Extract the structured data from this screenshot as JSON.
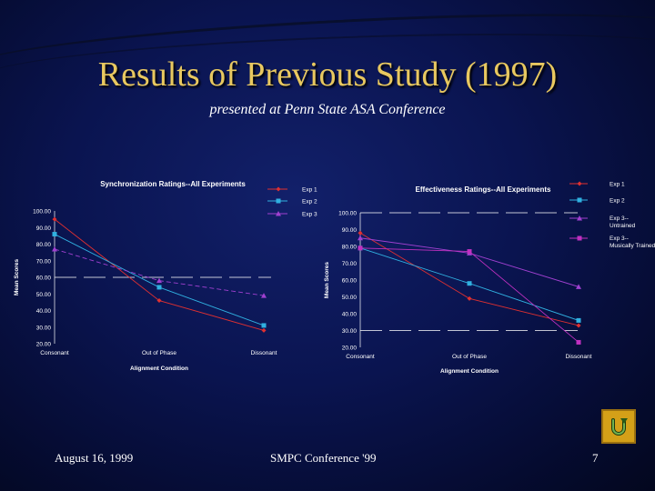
{
  "slide": {
    "title": "Results of Previous Study (1997)",
    "subtitle": "presented at Penn State ASA Conference",
    "footer_left": "August 16, 1999",
    "footer_center": "SMPC Conference '99",
    "page_number": "7",
    "return_icon": "return-arrow-icon"
  },
  "chart_data": [
    {
      "type": "line",
      "title": "Synchronization Ratings--All Experiments",
      "xlabel": "Alignment Condition",
      "ylabel": "Mean Scores",
      "categories": [
        "Consonant",
        "Out of Phase",
        "Dissonant"
      ],
      "ylim": [
        20,
        100
      ],
      "yticks": [
        "20.00",
        "30.00",
        "40.00",
        "50.00",
        "60.00",
        "70.00",
        "80.00",
        "90.00",
        "100.00"
      ],
      "reference_line": 60,
      "series": [
        {
          "name": "Exp 1",
          "values": [
            95,
            46,
            28
          ],
          "color": "#e03030",
          "marker": "diamond"
        },
        {
          "name": "Exp 2",
          "values": [
            86,
            54,
            31
          ],
          "color": "#30b0e0",
          "marker": "square"
        },
        {
          "name": "Exp 3",
          "values": [
            77,
            58,
            49
          ],
          "color": "#a040d0",
          "marker": "triangle"
        }
      ],
      "legend": "right"
    },
    {
      "type": "line",
      "title": "Effectiveness Ratings--All Experiments",
      "xlabel": "Alignment Condition",
      "ylabel": "Mean Scores",
      "categories": [
        "Consonant",
        "Out of Phase",
        "Dissonant"
      ],
      "ylim": [
        20,
        100
      ],
      "yticks": [
        "20.00",
        "30.00",
        "40.00",
        "50.00",
        "60.00",
        "70.00",
        "80.00",
        "90.00",
        "100.00"
      ],
      "reference_lines": [
        100,
        30
      ],
      "series": [
        {
          "name": "Exp 1",
          "values": [
            88,
            49,
            33
          ],
          "color": "#e03030",
          "marker": "diamond"
        },
        {
          "name": "Exp 2",
          "values": [
            79,
            58,
            36
          ],
          "color": "#30b0e0",
          "marker": "square"
        },
        {
          "name": "Exp 3--Untrained",
          "values": [
            85,
            76,
            56
          ],
          "color": "#a040d0",
          "marker": "triangle"
        },
        {
          "name": "Exp 3--Musically Trained",
          "values": [
            79,
            77,
            23
          ],
          "color": "#c030c0",
          "marker": "square"
        }
      ],
      "legend": "right"
    }
  ]
}
